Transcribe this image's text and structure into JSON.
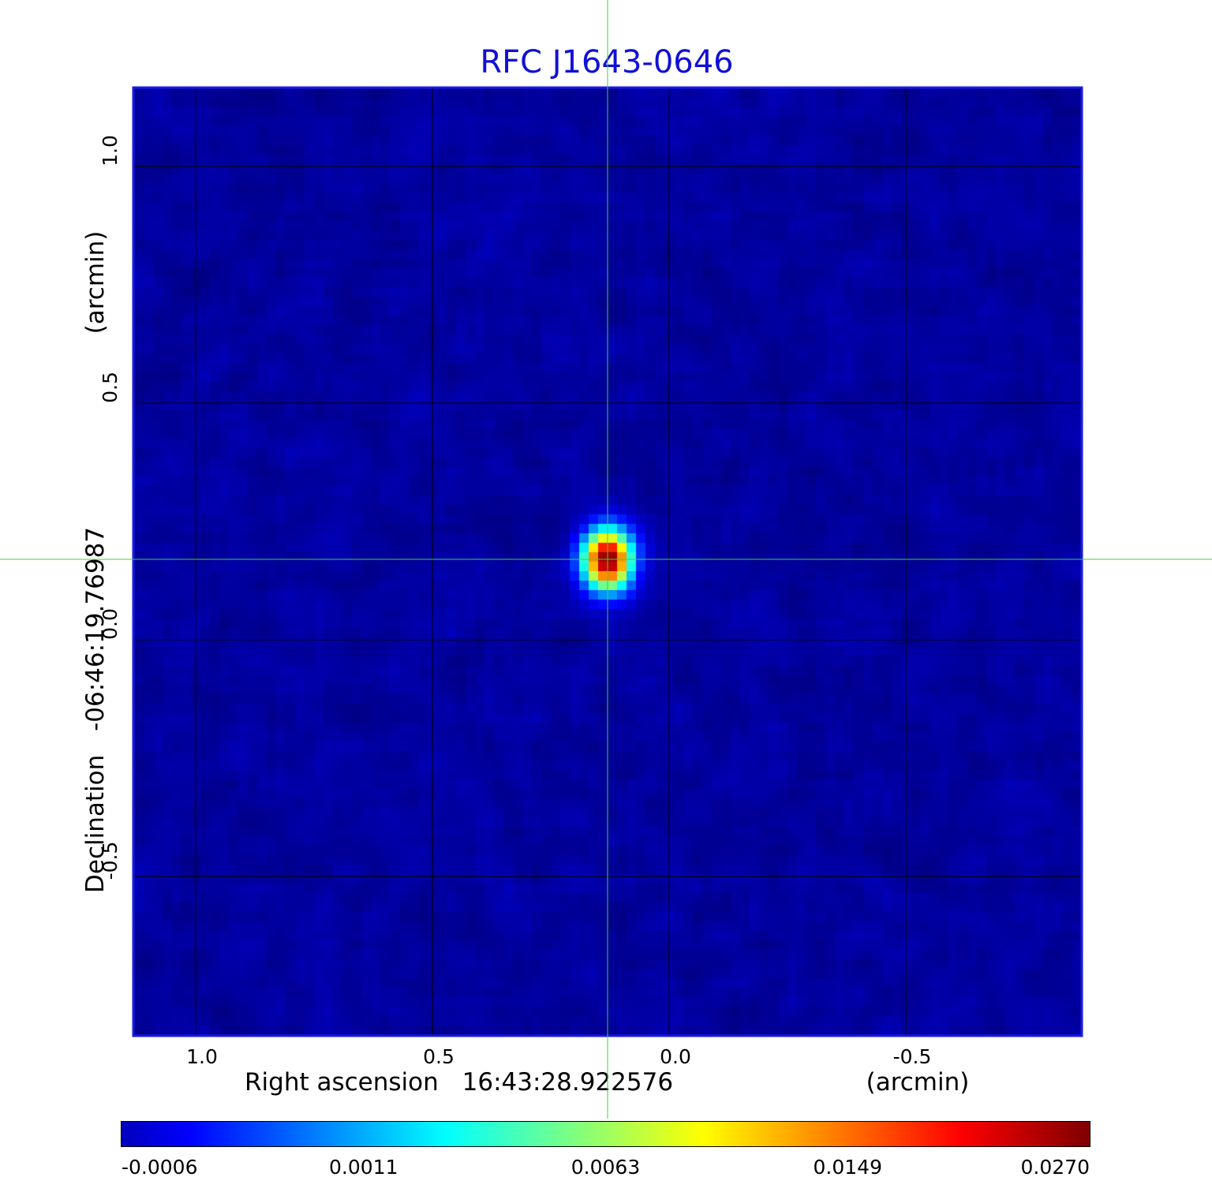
{
  "chart_data": {
    "type": "heatmap",
    "title": "RFC J1643-0646",
    "x_axis": {
      "label_prefix": "Right ascension",
      "label_value": "16:43:28.922576",
      "unit_label": "(arcmin)",
      "ticks": [
        {
          "value": 1.0,
          "label": "1.0"
        },
        {
          "value": 0.5,
          "label": "0.5"
        },
        {
          "value": 0.0,
          "label": "0.0"
        },
        {
          "value": -0.5,
          "label": "-0.5"
        }
      ],
      "range": [
        1.13,
        -0.87
      ],
      "inverted": true
    },
    "y_axis": {
      "label_prefix": "Declination",
      "label_value": "-06:46:19.76987",
      "unit_label": "(arcmin)",
      "ticks": [
        {
          "value": 1.0,
          "label": "1.0"
        },
        {
          "value": 0.5,
          "label": "0.5"
        },
        {
          "value": 0.0,
          "label": "0.0"
        },
        {
          "value": -0.5,
          "label": "-0.5"
        }
      ],
      "range": [
        -0.835,
        1.165
      ]
    },
    "grid": true,
    "crosshair": {
      "x": 0.13,
      "y": 0.17,
      "color": "#3ad43a"
    },
    "source": {
      "x": 0.13,
      "y": 0.17,
      "peak": 0.027
    },
    "colorbar": {
      "location": "bottom",
      "colormap": "jet",
      "min": -0.0006,
      "max": 0.027,
      "ticks": [
        {
          "value": -0.0006,
          "label": "-0.0006"
        },
        {
          "value": 0.0011,
          "label": "0.0011"
        },
        {
          "value": 0.0063,
          "label": "0.0063"
        },
        {
          "value": 0.0149,
          "label": "0.0149"
        },
        {
          "value": 0.027,
          "label": "0.0270"
        }
      ]
    },
    "colors": {
      "title": "#1010d8",
      "frame": "#1a1ae6",
      "grid": "#000000",
      "crosshair": "#3ad43a"
    }
  }
}
